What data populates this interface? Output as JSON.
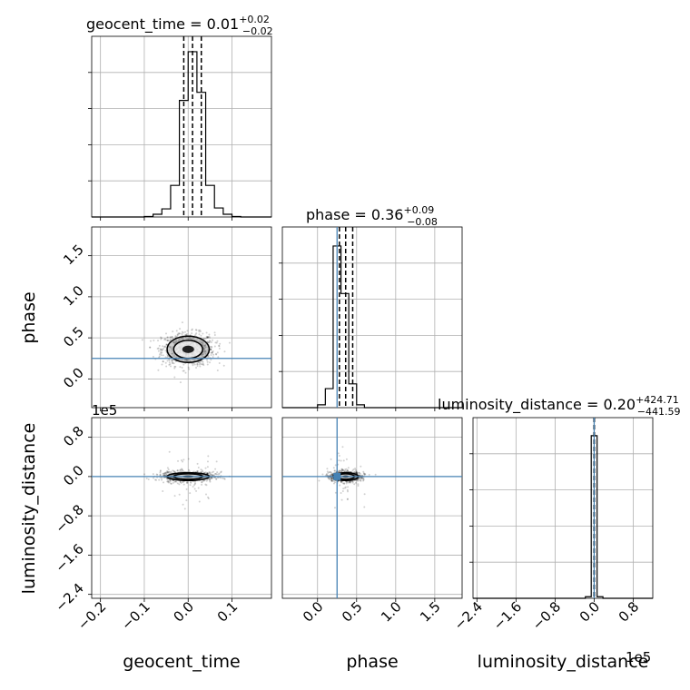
{
  "params": [
    {
      "name": "geocent_time",
      "xlim": [
        -0.22,
        0.19
      ],
      "ticks": [
        -0.2,
        -0.1,
        0.0,
        0.1
      ],
      "ticklabels": [
        "−0.2",
        "−0.1",
        "0.0",
        "0.1"
      ]
    },
    {
      "name": "phase",
      "xlim": [
        -0.45,
        1.85
      ],
      "ticks": [
        0.0,
        0.5,
        1.0,
        1.5
      ],
      "ticklabels": [
        "0.0",
        "0.5",
        "1.0",
        "1.5"
      ]
    },
    {
      "name": "luminosity_distance",
      "xlim": [
        -2.48,
        1.2
      ],
      "ticks": [
        -2.4,
        -1.6,
        -0.8,
        0.0,
        0.8
      ],
      "ticklabels": [
        "−2.4",
        "−1.6",
        "−0.8",
        "0.0",
        "0.8"
      ],
      "offset": "1e5"
    }
  ],
  "truths": {
    "phase": 0.25,
    "luminosity_distance": 0.0
  },
  "colors": {
    "truth": "#4682b4",
    "hist": "#000000",
    "grid": "#b0b0b0"
  },
  "chart_data": [
    {
      "type": "bar",
      "title": "geocent_time = 0.01",
      "title_sup": "+0.02",
      "title_sub": "−0.02",
      "xlabel": "geocent_time",
      "bin_edges": [
        -0.1,
        -0.08,
        -0.06,
        -0.04,
        -0.02,
        0.0,
        0.02,
        0.04,
        0.06,
        0.08,
        0.1,
        0.12
      ],
      "counts": [
        0.005,
        0.03,
        0.09,
        0.35,
        1.29,
        1.83,
        1.38,
        0.35,
        0.1,
        0.03,
        0.005
      ],
      "quantiles": [
        -0.01,
        0.01,
        0.03
      ],
      "ylim": [
        0,
        2.0
      ]
    },
    {
      "type": "bar",
      "title": "phase = 0.36",
      "title_sup": "+0.09",
      "title_sub": "−0.08",
      "xlabel": "phase",
      "bin_edges": [
        -0.0,
        0.1,
        0.2,
        0.3,
        0.4,
        0.5,
        0.6,
        0.7
      ],
      "counts": [
        0.03,
        0.2,
        1.7,
        1.2,
        0.25,
        0.03,
        0.0
      ],
      "quantiles": [
        0.28,
        0.36,
        0.45
      ],
      "ylim": [
        0,
        1.9
      ]
    },
    {
      "type": "bar",
      "title": "luminosity_distance = 0.20",
      "title_sup": "+424.71",
      "title_sub": "−441.59",
      "xlabel": "luminosity_distance",
      "bin_edges": [
        -0.18,
        -0.06,
        0.06,
        0.18
      ],
      "counts": [
        0.02,
        2.07,
        0.02
      ],
      "quantiles": [
        -0.00442,
        0.0,
        0.00425
      ],
      "ylim": [
        0,
        2.3
      ]
    },
    {
      "type": "scatter",
      "xlabel": "geocent_time",
      "ylabel": "phase",
      "y_ticks": [
        0.0,
        0.5,
        1.0,
        1.5
      ],
      "y_ticklabels": [
        "0.0",
        "0.5",
        "1.0",
        "1.5"
      ],
      "ylim": [
        -0.35,
        1.85
      ],
      "center": [
        0.0,
        0.36
      ],
      "spread": [
        0.03,
        0.1
      ]
    },
    {
      "type": "scatter",
      "xlabel": "geocent_time",
      "ylabel": "luminosity_distance",
      "y_ticks": [
        0.8,
        0.0,
        -0.8,
        -1.6,
        -2.4
      ],
      "y_ticklabels": [
        "0.8",
        "0.0",
        "−0.8",
        "−1.6",
        "−2.4"
      ],
      "y_offset": "1e5",
      "ylim": [
        -2.48,
        1.2
      ],
      "center": [
        0.0,
        0.0
      ],
      "spread": [
        0.03,
        0.05
      ]
    },
    {
      "type": "scatter",
      "xlabel": "phase",
      "ylabel": "luminosity_distance",
      "ylim": [
        -2.48,
        1.2
      ],
      "center": [
        0.36,
        0.0
      ],
      "spread": [
        0.1,
        0.05
      ]
    }
  ]
}
